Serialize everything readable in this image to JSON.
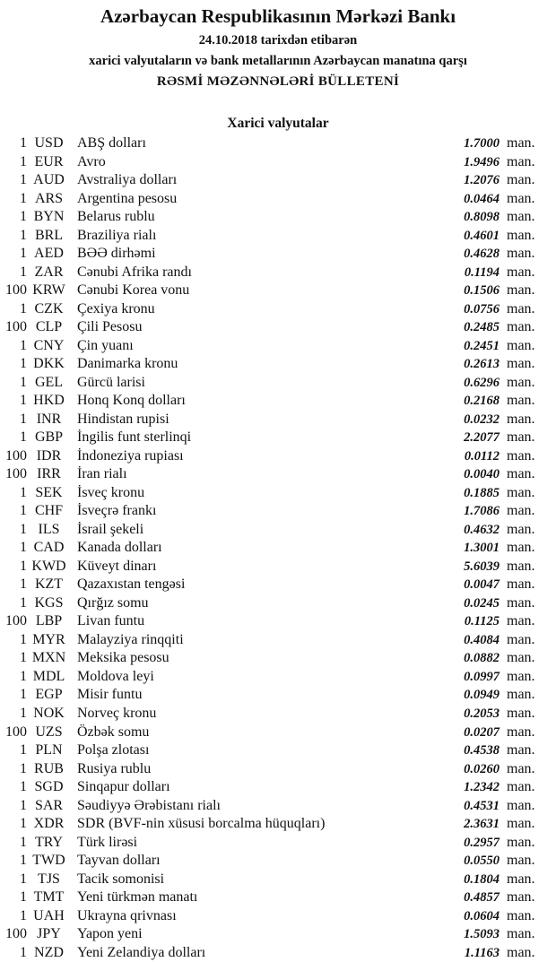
{
  "header": {
    "bank": "Azərbaycan Respublikasının Mərkəzi Bankı",
    "date_line": "24.10.2018  tarixdən etibarən",
    "subtitle": "xarici valyutaların və bank metallarının Azərbaycan manatına qarşı",
    "title": "RƏSMİ MƏZƏNNƏLƏRİ BÜLLETENİ",
    "section": "Xarici valyutalar"
  },
  "unit_label": "man.",
  "rates": [
    {
      "qty": "1",
      "code": "USD",
      "name": "ABŞ dolları",
      "rate": "1.7000"
    },
    {
      "qty": "1",
      "code": "EUR",
      "name": "Avro",
      "rate": "1.9496"
    },
    {
      "qty": "1",
      "code": "AUD",
      "name": "Avstraliya dolları",
      "rate": "1.2076"
    },
    {
      "qty": "1",
      "code": "ARS",
      "name": "Argentina pesosu",
      "rate": "0.0464"
    },
    {
      "qty": "1",
      "code": "BYN",
      "name": "Belarus rublu",
      "rate": "0.8098"
    },
    {
      "qty": "1",
      "code": "BRL",
      "name": "Braziliya rialı",
      "rate": "0.4601"
    },
    {
      "qty": "1",
      "code": "AED",
      "name": "BƏƏ dirhəmi",
      "rate": "0.4628"
    },
    {
      "qty": "1",
      "code": "ZAR",
      "name": "Cənubi Afrika randı",
      "rate": "0.1194"
    },
    {
      "qty": "100",
      "code": "KRW",
      "name": "Cənubi Korea vonu",
      "rate": "0.1506"
    },
    {
      "qty": "1",
      "code": "CZK",
      "name": "Çexiya kronu",
      "rate": "0.0756"
    },
    {
      "qty": "100",
      "code": "CLP",
      "name": "Çili Pesosu",
      "rate": "0.2485"
    },
    {
      "qty": "1",
      "code": "CNY",
      "name": "Çin yuanı",
      "rate": "0.2451"
    },
    {
      "qty": "1",
      "code": "DKK",
      "name": "Danimarka kronu",
      "rate": "0.2613"
    },
    {
      "qty": "1",
      "code": "GEL",
      "name": "Gürcü larisi",
      "rate": "0.6296"
    },
    {
      "qty": "1",
      "code": "HKD",
      "name": "Honq Konq dolları",
      "rate": "0.2168"
    },
    {
      "qty": "1",
      "code": "INR",
      "name": "Hindistan rupisi",
      "rate": "0.0232"
    },
    {
      "qty": "1",
      "code": "GBP",
      "name": "İngilis funt sterlinqi",
      "rate": "2.2077"
    },
    {
      "qty": "100",
      "code": "IDR",
      "name": "İndoneziya rupiası",
      "rate": "0.0112"
    },
    {
      "qty": "100",
      "code": "IRR",
      "name": "İran rialı",
      "rate": "0.0040"
    },
    {
      "qty": "1",
      "code": "SEK",
      "name": "İsveç kronu",
      "rate": "0.1885"
    },
    {
      "qty": "1",
      "code": "CHF",
      "name": "İsveçrə frankı",
      "rate": "1.7086"
    },
    {
      "qty": "1",
      "code": "ILS",
      "name": "İsrail şekeli",
      "rate": "0.4632"
    },
    {
      "qty": "1",
      "code": "CAD",
      "name": "Kanada dolları",
      "rate": "1.3001"
    },
    {
      "qty": "1",
      "code": "KWD",
      "name": "Küveyt dinarı",
      "rate": "5.6039"
    },
    {
      "qty": "1",
      "code": "KZT",
      "name": "Qazaxıstan tengəsi",
      "rate": "0.0047"
    },
    {
      "qty": "1",
      "code": "KGS",
      "name": "Qırğız somu",
      "rate": "0.0245"
    },
    {
      "qty": "100",
      "code": "LBP",
      "name": "Livan funtu",
      "rate": "0.1125"
    },
    {
      "qty": "1",
      "code": "MYR",
      "name": "Malayziya rinqqiti",
      "rate": "0.4084"
    },
    {
      "qty": "1",
      "code": "MXN",
      "name": "Meksika pesosu",
      "rate": "0.0882"
    },
    {
      "qty": "1",
      "code": "MDL",
      "name": "Moldova leyi",
      "rate": "0.0997"
    },
    {
      "qty": "1",
      "code": "EGP",
      "name": "Misir funtu",
      "rate": "0.0949"
    },
    {
      "qty": "1",
      "code": "NOK",
      "name": "Norveç kronu",
      "rate": "0.2053"
    },
    {
      "qty": "100",
      "code": "UZS",
      "name": "Özbək somu",
      "rate": "0.0207"
    },
    {
      "qty": "1",
      "code": "PLN",
      "name": "Polşa zlotası",
      "rate": "0.4538"
    },
    {
      "qty": "1",
      "code": "RUB",
      "name": "Rusiya rublu",
      "rate": "0.0260"
    },
    {
      "qty": "1",
      "code": "SGD",
      "name": "Sinqapur dolları",
      "rate": "1.2342"
    },
    {
      "qty": "1",
      "code": "SAR",
      "name": "Səudiyyə Ərəbistanı rialı",
      "rate": "0.4531"
    },
    {
      "qty": "1",
      "code": "XDR",
      "name": "SDR (BVF-nin xüsusi borcalma hüquqları)",
      "rate": "2.3631"
    },
    {
      "qty": "1",
      "code": "TRY",
      "name": "Türk lirəsi",
      "rate": "0.2957"
    },
    {
      "qty": "1",
      "code": "TWD",
      "name": "Tayvan dolları",
      "rate": "0.0550"
    },
    {
      "qty": "1",
      "code": "TJS",
      "name": "Tacik somonisi",
      "rate": "0.1804"
    },
    {
      "qty": "1",
      "code": "TMT",
      "name": "Yeni türkmən manatı",
      "rate": "0.4857"
    },
    {
      "qty": "1",
      "code": "UAH",
      "name": "Ukrayna qrivnası",
      "rate": "0.0604"
    },
    {
      "qty": "100",
      "code": "JPY",
      "name": "Yapon yeni",
      "rate": "1.5093"
    },
    {
      "qty": "1",
      "code": "NZD",
      "name": "Yeni Zelandiya dolları",
      "rate": "1.1163"
    }
  ]
}
